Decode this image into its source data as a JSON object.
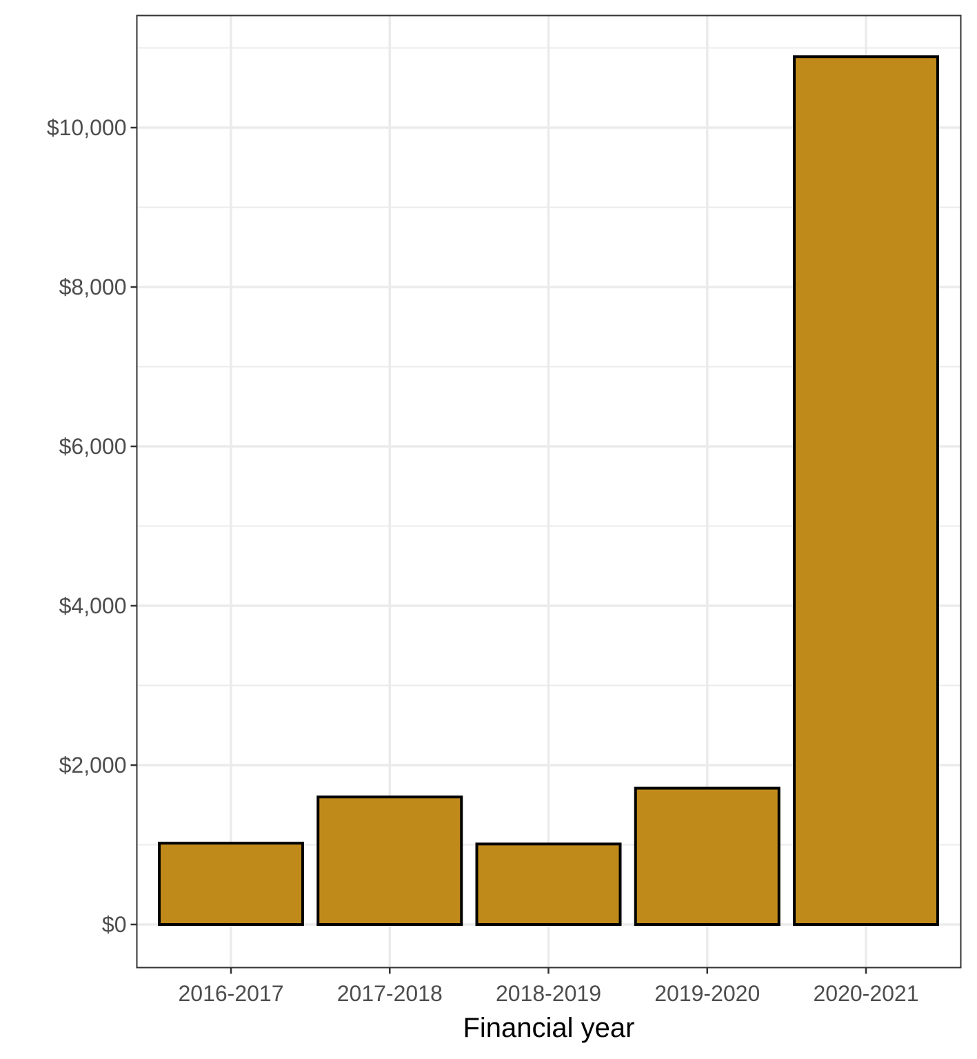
{
  "chart_data": {
    "type": "bar",
    "title": "",
    "xlabel": "Financial year",
    "ylabel": "",
    "categories": [
      "2016-2017",
      "2017-2018",
      "2018-2019",
      "2019-2020",
      "2020-2021"
    ],
    "values": [
      1020,
      1600,
      1010,
      1710,
      10890
    ],
    "ylim": [
      -290,
      11480
    ],
    "yticks": [
      0,
      2000,
      4000,
      6000,
      8000,
      10000
    ],
    "ytick_labels": [
      "$0",
      "$2,000",
      "$4,000",
      "$6,000",
      "$8,000",
      "$10,000"
    ],
    "grid": true,
    "legend": "none",
    "colors": {
      "bar_fill": "#c08a1a",
      "bar_stroke": "#000000",
      "grid": "#ebebeb",
      "panel_border": "#333333"
    }
  }
}
